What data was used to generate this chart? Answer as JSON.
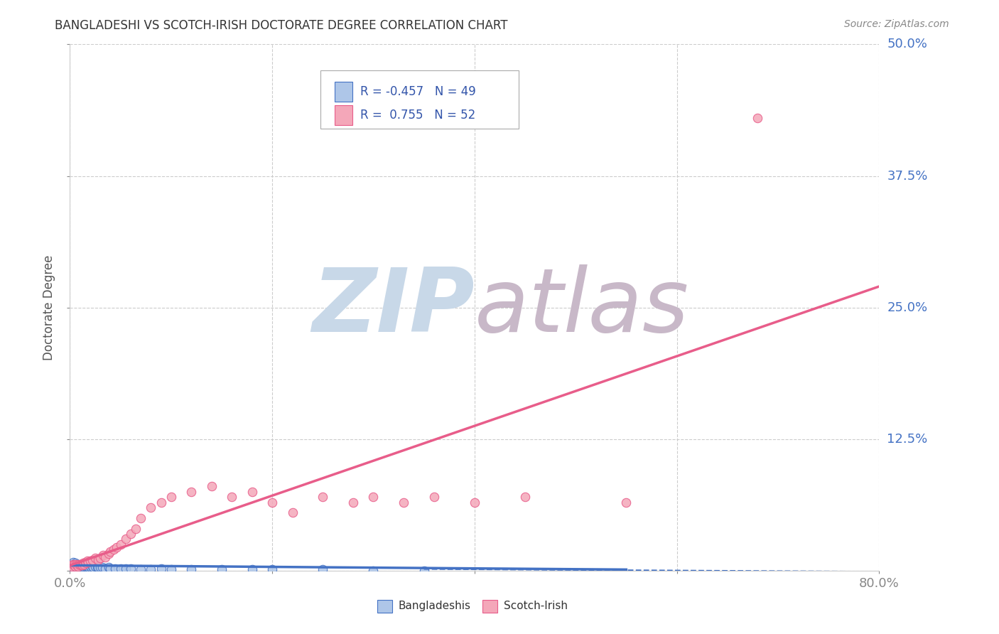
{
  "title": "BANGLADESHI VS SCOTCH-IRISH DOCTORATE DEGREE CORRELATION CHART",
  "source": "Source: ZipAtlas.com",
  "ylabel": "Doctorate Degree",
  "xlim": [
    0.0,
    0.8
  ],
  "ylim": [
    0.0,
    0.5
  ],
  "xticks": [
    0.0,
    0.2,
    0.4,
    0.6,
    0.8
  ],
  "xticklabels": [
    "0.0%",
    "",
    "",
    "",
    "80.0%"
  ],
  "yticks": [
    0.0,
    0.125,
    0.25,
    0.375,
    0.5
  ],
  "yticklabels": [
    "",
    "12.5%",
    "25.0%",
    "37.5%",
    "50.0%"
  ],
  "grid_color": "#cccccc",
  "background_color": "#ffffff",
  "watermark_zip": "ZIP",
  "watermark_atlas": "atlas",
  "watermark_color_zip": "#c8d8e8",
  "watermark_color_atlas": "#c8b8c8",
  "bangladeshi_color": "#aec6e8",
  "scotch_irish_color": "#f4a7b9",
  "bangladeshi_line_color": "#4472c4",
  "scotch_irish_line_color": "#e85d8a",
  "legend_R_bangladeshi": "-0.457",
  "legend_N_bangladeshi": "49",
  "legend_R_scotch_irish": "0.755",
  "legend_N_scotch_irish": "52",
  "legend_label_bangladeshi": "Bangladeshis",
  "legend_label_scotch_irish": "Scotch-Irish",
  "ytick_color": "#4472c4",
  "xtick_color": "#333333",
  "bangladeshi_x": [
    0.001,
    0.002,
    0.003,
    0.003,
    0.004,
    0.005,
    0.005,
    0.006,
    0.007,
    0.007,
    0.008,
    0.009,
    0.01,
    0.011,
    0.012,
    0.013,
    0.014,
    0.015,
    0.016,
    0.017,
    0.018,
    0.019,
    0.02,
    0.021,
    0.022,
    0.023,
    0.025,
    0.027,
    0.028,
    0.03,
    0.032,
    0.035,
    0.038,
    0.04,
    0.045,
    0.05,
    0.055,
    0.06,
    0.07,
    0.08,
    0.09,
    0.1,
    0.12,
    0.15,
    0.18,
    0.2,
    0.25,
    0.3,
    0.35
  ],
  "bangladeshi_y": [
    0.004,
    0.003,
    0.005,
    0.008,
    0.006,
    0.004,
    0.007,
    0.005,
    0.003,
    0.006,
    0.004,
    0.005,
    0.006,
    0.004,
    0.005,
    0.003,
    0.004,
    0.005,
    0.004,
    0.003,
    0.004,
    0.003,
    0.004,
    0.003,
    0.004,
    0.003,
    0.004,
    0.003,
    0.003,
    0.003,
    0.003,
    0.002,
    0.003,
    0.002,
    0.002,
    0.002,
    0.002,
    0.002,
    0.001,
    0.001,
    0.002,
    0.001,
    0.001,
    0.001,
    0.001,
    0.001,
    0.001,
    0.0,
    0.0
  ],
  "scotch_irish_x": [
    0.001,
    0.002,
    0.003,
    0.004,
    0.005,
    0.006,
    0.007,
    0.008,
    0.009,
    0.01,
    0.011,
    0.012,
    0.013,
    0.014,
    0.015,
    0.016,
    0.017,
    0.018,
    0.02,
    0.022,
    0.025,
    0.028,
    0.03,
    0.033,
    0.035,
    0.038,
    0.04,
    0.043,
    0.046,
    0.05,
    0.055,
    0.06,
    0.065,
    0.07,
    0.08,
    0.09,
    0.1,
    0.12,
    0.14,
    0.16,
    0.18,
    0.2,
    0.22,
    0.25,
    0.28,
    0.3,
    0.33,
    0.36,
    0.4,
    0.45,
    0.55,
    0.68
  ],
  "scotch_irish_y": [
    0.005,
    0.004,
    0.006,
    0.005,
    0.004,
    0.006,
    0.005,
    0.004,
    0.006,
    0.005,
    0.006,
    0.005,
    0.007,
    0.006,
    0.008,
    0.007,
    0.009,
    0.008,
    0.009,
    0.01,
    0.012,
    0.01,
    0.012,
    0.015,
    0.013,
    0.016,
    0.018,
    0.02,
    0.022,
    0.025,
    0.03,
    0.035,
    0.04,
    0.05,
    0.06,
    0.065,
    0.07,
    0.075,
    0.08,
    0.07,
    0.075,
    0.065,
    0.055,
    0.07,
    0.065,
    0.07,
    0.065,
    0.07,
    0.065,
    0.07,
    0.065,
    0.43
  ],
  "bangladeshi_trendline_x": [
    0.0,
    0.55
  ],
  "bangladeshi_trendline_y": [
    0.005,
    0.001
  ],
  "scotch_irish_trendline_x": [
    0.0,
    0.8
  ],
  "scotch_irish_trendline_y": [
    0.005,
    0.27
  ]
}
